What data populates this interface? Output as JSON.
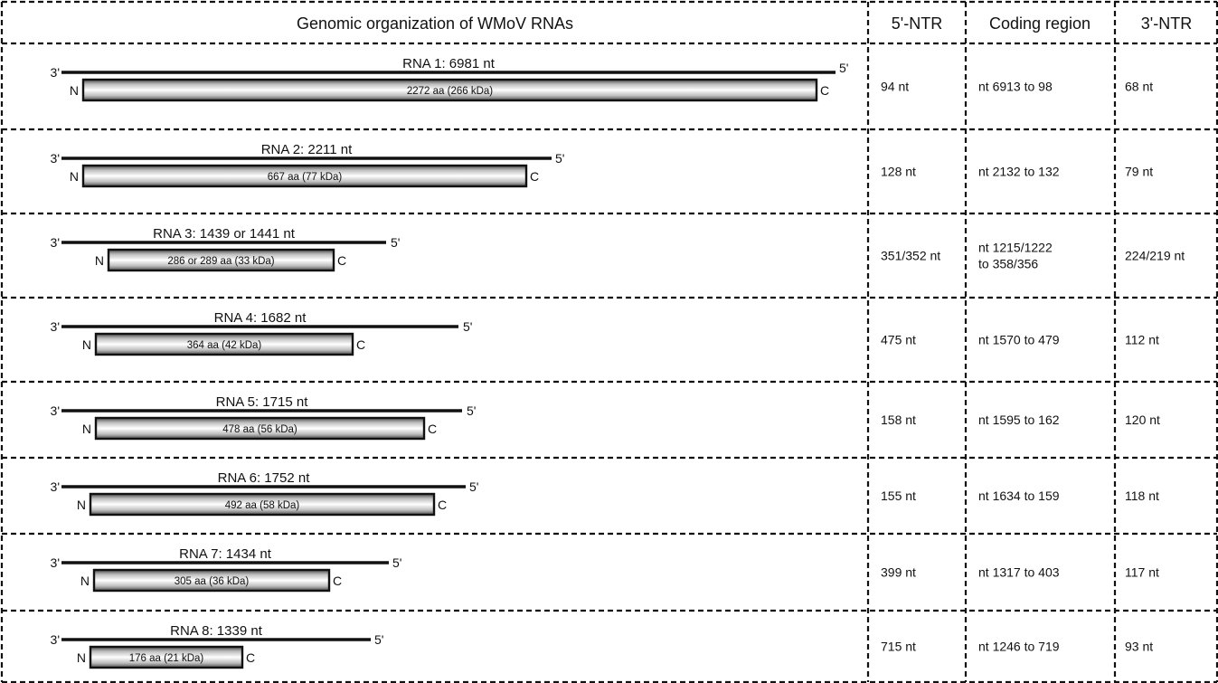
{
  "table": {
    "headers": {
      "diagram": "Genomic organization of WMoV RNAs",
      "ntr5": "5'-NTR",
      "coding": "Coding region",
      "ntr3": "3'-NTR"
    },
    "rows": [
      {
        "rna_label": "RNA 1: 6981 nt",
        "protein_label": "2272 aa (266 kDa)",
        "rna_length_nt": 6981,
        "protein_length_aa": 2272,
        "end3": "3'",
        "end5": "5'",
        "n_term": "N",
        "c_term": "C",
        "ntr5": "94 nt",
        "coding": [
          "nt 6913 to 98"
        ],
        "ntr3": "68 nt"
      },
      {
        "rna_label": "RNA 2: 2211 nt",
        "protein_label": "667 aa (77 kDa)",
        "rna_length_nt": 2211,
        "protein_length_aa": 667,
        "end3": "3'",
        "end5": "5'",
        "n_term": "N",
        "c_term": "C",
        "ntr5": "128 nt",
        "coding": [
          "nt 2132 to 132"
        ],
        "ntr3": "79 nt"
      },
      {
        "rna_label": "RNA 3: 1439 or 1441 nt",
        "protein_label": "286 or 289 aa (33 kDa)",
        "rna_length_nt": 1441,
        "protein_length_aa": 289,
        "end3": "3'",
        "end5": "5'",
        "n_term": "N",
        "c_term": "C",
        "ntr5": "351/352 nt",
        "coding": [
          "nt 1215/1222",
          "to 358/356"
        ],
        "ntr3": "224/219 nt"
      },
      {
        "rna_label": "RNA 4: 1682 nt",
        "protein_label": "364 aa (42 kDa)",
        "rna_length_nt": 1682,
        "protein_length_aa": 364,
        "end3": "3'",
        "end5": "5'",
        "n_term": "N",
        "c_term": "C",
        "ntr5": "475 nt",
        "coding": [
          "nt 1570 to 479"
        ],
        "ntr3": "112  nt"
      },
      {
        "rna_label": "RNA 5: 1715 nt",
        "protein_label": "478 aa (56 kDa)",
        "rna_length_nt": 1715,
        "protein_length_aa": 478,
        "end3": "3'",
        "end5": "5'",
        "n_term": "N",
        "c_term": "C",
        "ntr5": "158 nt",
        "coding": [
          "nt 1595 to 162"
        ],
        "ntr3": "120  nt"
      },
      {
        "rna_label": "RNA 6: 1752 nt",
        "protein_label": "492 aa (58 kDa)",
        "rna_length_nt": 1752,
        "protein_length_aa": 492,
        "end3": "3'",
        "end5": "5'",
        "n_term": "N",
        "c_term": "C",
        "ntr5": "155 nt",
        "coding": [
          "nt 1634 to 159"
        ],
        "ntr3": "118 nt"
      },
      {
        "rna_label": "RNA 7: 1434 nt",
        "protein_label": "305 aa (36 kDa)",
        "rna_length_nt": 1434,
        "protein_length_aa": 305,
        "end3": "3'",
        "end5": "5'",
        "n_term": "N",
        "c_term": "C",
        "ntr5": "399 nt",
        "coding": [
          "nt 1317 to 403"
        ],
        "ntr3": "117 nt"
      },
      {
        "rna_label": "RNA 8: 1339 nt",
        "protein_label": "176 aa (21 kDa)",
        "rna_length_nt": 1339,
        "protein_length_aa": 176,
        "end3": "3'",
        "end5": "5'",
        "n_term": "N",
        "c_term": "C",
        "ntr5": "715 nt",
        "coding": [
          "nt 1246 to 719"
        ],
        "ntr3": "93 nt"
      }
    ]
  }
}
